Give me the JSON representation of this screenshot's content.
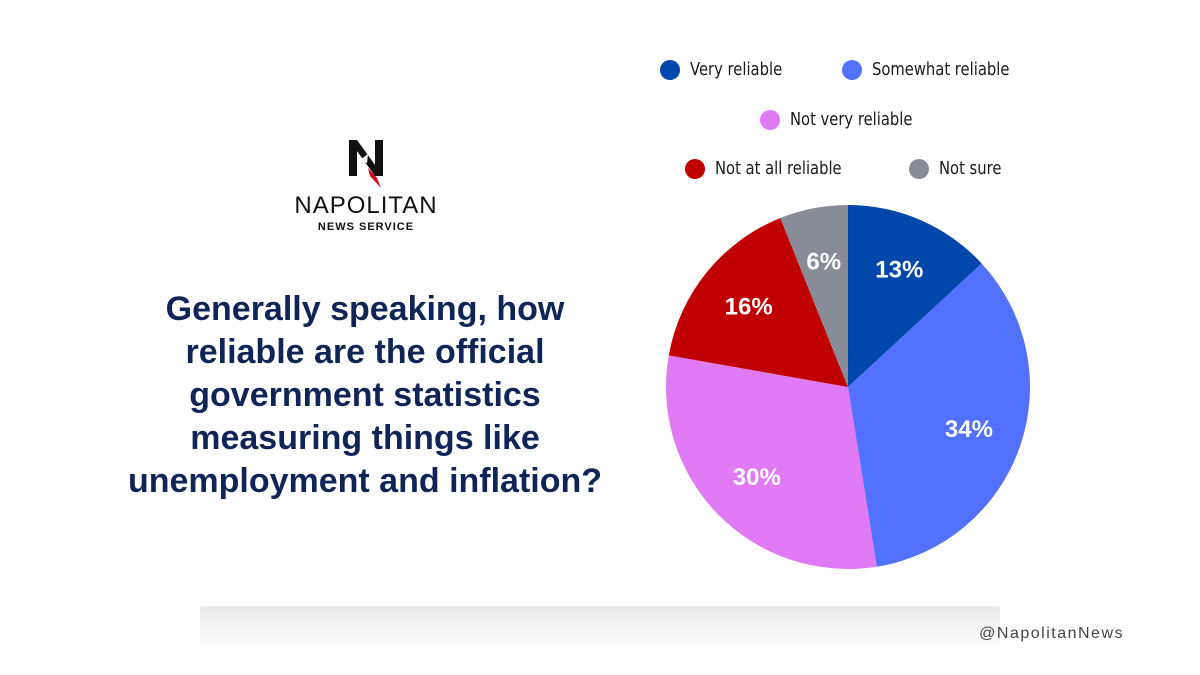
{
  "brand": {
    "name": "NAPOLITAN",
    "sub": "NEWS SERVICE"
  },
  "question": "Generally speaking, how reliable are the official government statistics measuring things like unemployment and inflation?",
  "handle": "@NapolitanNews",
  "colors": {
    "question": "#102557"
  },
  "chart_data": {
    "type": "pie",
    "title": "",
    "unit": "%",
    "slices": [
      {
        "name": "Very reliable",
        "value": 13,
        "color": "#0047AB"
      },
      {
        "name": "Somewhat reliable",
        "value": 34,
        "color": "#5271FF"
      },
      {
        "name": "Not very reliable",
        "value": 30,
        "color": "#E07AF5"
      },
      {
        "name": "Not at all reliable",
        "value": 16,
        "color": "#C00000"
      },
      {
        "name": "Not sure",
        "value": 6,
        "color": "#878C96"
      }
    ],
    "legend_placement": "top"
  }
}
